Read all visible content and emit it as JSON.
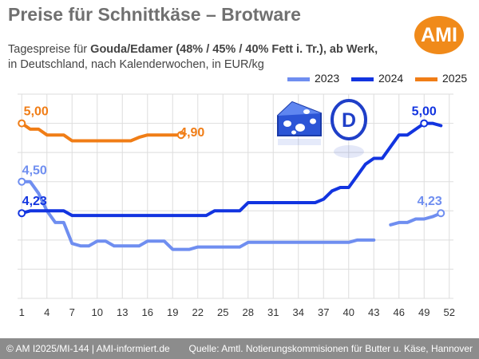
{
  "header": {
    "title": "Preise für Schnittkäse – Brotware",
    "subtitle_prefix": "Tagespreise für ",
    "subtitle_bold": "Gouda/Edamer (48% / 45% / 40% Fett i. Tr.), ab Werk,",
    "subtitle_line2": "in Deutschland, nach Kalenderwochen, in EUR/kg",
    "logo_text": "AMI"
  },
  "footer": {
    "left": "© AM I2025/MI-144 | AMI-informiert.de",
    "right": "Quelle: Amtl. Notierungskommisionen für Butter u. Käse, Hannover"
  },
  "icons": {
    "cheese": "cheese-icon",
    "country": "country-badge-icon",
    "country_letter": "D"
  },
  "colors": {
    "s2023": "#6f8ef0",
    "s2024": "#1234e0",
    "s2025": "#f07d16",
    "grid": "#dddddd",
    "footer": "#8c8c8c",
    "logo": "#f08a1a"
  },
  "chart_data": {
    "type": "line",
    "xlabel": "",
    "ylabel": "",
    "x_ticks": [
      1,
      4,
      7,
      10,
      13,
      16,
      19,
      22,
      25,
      28,
      31,
      34,
      37,
      40,
      43,
      46,
      49,
      52
    ],
    "xlim": [
      0.5,
      52.5
    ],
    "ylim": [
      3.5,
      5.25
    ],
    "grid": true,
    "legend_position": "top-right",
    "series": [
      {
        "name": "2023",
        "segments": [
          [
            [
              1,
              4.5
            ],
            [
              2,
              4.5
            ],
            [
              3,
              4.4
            ],
            [
              4,
              4.25
            ],
            [
              5,
              4.15
            ],
            [
              6,
              4.15
            ],
            [
              7,
              3.97
            ],
            [
              8,
              3.95
            ],
            [
              9,
              3.95
            ],
            [
              10,
              3.99
            ],
            [
              11,
              3.99
            ],
            [
              12,
              3.95
            ],
            [
              13,
              3.95
            ],
            [
              14,
              3.95
            ],
            [
              15,
              3.95
            ],
            [
              16,
              3.99
            ],
            [
              17,
              3.99
            ],
            [
              18,
              3.99
            ],
            [
              19,
              3.92
            ],
            [
              20,
              3.92
            ],
            [
              21,
              3.92
            ],
            [
              22,
              3.94
            ],
            [
              23,
              3.94
            ],
            [
              24,
              3.94
            ],
            [
              25,
              3.94
            ],
            [
              26,
              3.94
            ],
            [
              27,
              3.94
            ],
            [
              28,
              3.98
            ],
            [
              29,
              3.98
            ],
            [
              30,
              3.98
            ],
            [
              31,
              3.98
            ],
            [
              32,
              3.98
            ],
            [
              33,
              3.98
            ],
            [
              34,
              3.98
            ],
            [
              35,
              3.98
            ],
            [
              36,
              3.98
            ],
            [
              37,
              3.98
            ],
            [
              38,
              3.98
            ],
            [
              39,
              3.98
            ],
            [
              40,
              3.98
            ],
            [
              41,
              4.0
            ],
            [
              42,
              4.0
            ],
            [
              43,
              4.0
            ]
          ],
          [
            [
              45,
              4.13
            ],
            [
              46,
              4.15
            ],
            [
              47,
              4.15
            ],
            [
              48,
              4.18
            ],
            [
              49,
              4.18
            ],
            [
              50,
              4.2
            ],
            [
              51,
              4.23
            ]
          ]
        ]
      },
      {
        "name": "2024",
        "segments": [
          [
            [
              1,
              4.23
            ],
            [
              2,
              4.25
            ],
            [
              3,
              4.25
            ],
            [
              4,
              4.25
            ],
            [
              5,
              4.25
            ],
            [
              6,
              4.25
            ],
            [
              7,
              4.21
            ],
            [
              8,
              4.21
            ],
            [
              9,
              4.21
            ],
            [
              10,
              4.21
            ],
            [
              11,
              4.21
            ],
            [
              12,
              4.21
            ],
            [
              13,
              4.21
            ],
            [
              14,
              4.21
            ],
            [
              15,
              4.21
            ],
            [
              16,
              4.21
            ],
            [
              17,
              4.21
            ],
            [
              18,
              4.21
            ],
            [
              19,
              4.21
            ],
            [
              20,
              4.21
            ],
            [
              21,
              4.21
            ],
            [
              22,
              4.21
            ],
            [
              23,
              4.21
            ],
            [
              24,
              4.25
            ],
            [
              25,
              4.25
            ],
            [
              26,
              4.25
            ],
            [
              27,
              4.25
            ],
            [
              28,
              4.32
            ],
            [
              29,
              4.32
            ],
            [
              30,
              4.32
            ],
            [
              31,
              4.32
            ],
            [
              32,
              4.32
            ],
            [
              33,
              4.32
            ],
            [
              34,
              4.32
            ],
            [
              35,
              4.32
            ],
            [
              36,
              4.32
            ],
            [
              37,
              4.35
            ],
            [
              38,
              4.42
            ],
            [
              39,
              4.45
            ],
            [
              40,
              4.45
            ],
            [
              41,
              4.55
            ],
            [
              42,
              4.65
            ],
            [
              43,
              4.7
            ],
            [
              44,
              4.7
            ],
            [
              45,
              4.8
            ],
            [
              46,
              4.9
            ],
            [
              47,
              4.9
            ],
            [
              48,
              4.95
            ],
            [
              49,
              5.0
            ],
            [
              50,
              5.0
            ],
            [
              51,
              4.98
            ]
          ]
        ]
      },
      {
        "name": "2025",
        "segments": [
          [
            [
              1,
              5.0
            ],
            [
              2,
              4.95
            ],
            [
              3,
              4.95
            ],
            [
              4,
              4.9
            ],
            [
              5,
              4.9
            ],
            [
              6,
              4.9
            ],
            [
              7,
              4.85
            ],
            [
              8,
              4.85
            ],
            [
              9,
              4.85
            ],
            [
              10,
              4.85
            ],
            [
              11,
              4.85
            ],
            [
              12,
              4.85
            ],
            [
              13,
              4.85
            ],
            [
              14,
              4.85
            ],
            [
              15,
              4.88
            ],
            [
              16,
              4.9
            ],
            [
              17,
              4.9
            ],
            [
              18,
              4.9
            ],
            [
              19,
              4.9
            ],
            [
              20,
              4.9
            ]
          ]
        ]
      }
    ],
    "annotations": [
      {
        "label": "5,00",
        "series": "2025",
        "x": 1,
        "y": 5.0
      },
      {
        "label": "4,90",
        "series": "2025",
        "x": 20,
        "y": 4.9
      },
      {
        "label": "4,50",
        "series": "2023",
        "x": 1,
        "y": 4.5
      },
      {
        "label": "4,23",
        "series": "2024",
        "x": 1,
        "y": 4.23
      },
      {
        "label": "5,00",
        "series": "2024",
        "x": 49,
        "y": 5.0
      },
      {
        "label": "4,23",
        "series": "2023",
        "x": 51,
        "y": 4.23
      }
    ]
  }
}
